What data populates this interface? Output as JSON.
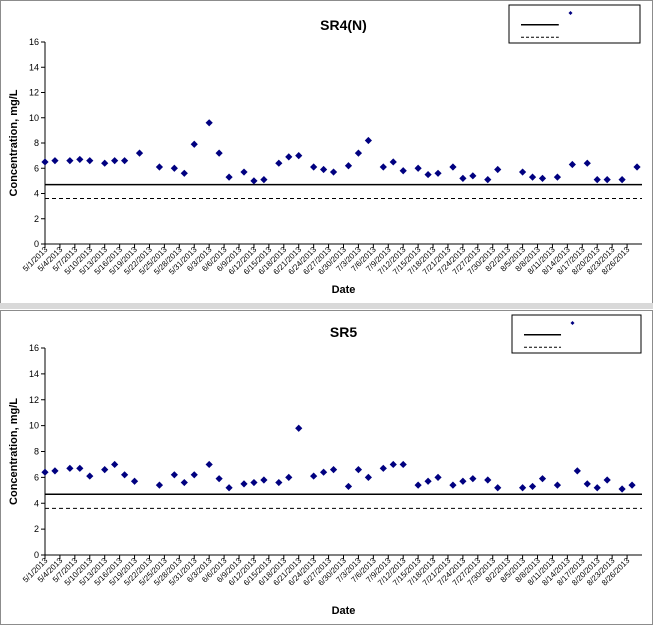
{
  "chart_data": [
    {
      "type": "scatter",
      "title": "SR4(N)",
      "xlabel": "Date",
      "ylabel": "Concentration, mg/L",
      "ylim": [
        0,
        16
      ],
      "yticks": [
        0,
        2,
        4,
        6,
        8,
        10,
        12,
        14,
        16
      ],
      "xtick_labels": [
        "5/1/2013",
        "5/4/2013",
        "5/7/2013",
        "5/10/2013",
        "5/13/2013",
        "5/16/2013",
        "5/19/2013",
        "5/22/2013",
        "5/25/2013",
        "5/28/2013",
        "5/31/2013",
        "6/3/2013",
        "6/6/2013",
        "6/9/2013",
        "6/12/2013",
        "6/15/2013",
        "6/18/2013",
        "6/21/2013",
        "6/24/2013",
        "6/27/2013",
        "6/30/2013",
        "7/3/2013",
        "7/6/2013",
        "7/9/2013",
        "7/12/2013",
        "7/15/2013",
        "7/18/2013",
        "7/21/2013",
        "7/24/2013",
        "7/27/2013",
        "7/30/2013",
        "8/2/2013",
        "8/5/2013",
        "8/8/2013",
        "8/11/2013",
        "8/14/2013",
        "8/17/2013",
        "8/20/2013",
        "8/23/2013",
        "8/26/2013"
      ],
      "series": [
        {
          "name": "SR4(N)",
          "color": "#000080",
          "x": [
            "5/1/2013",
            "5/3/2013",
            "5/6/2013",
            "5/8/2013",
            "5/10/2013",
            "5/13/2013",
            "5/15/2013",
            "5/17/2013",
            "5/20/2013",
            "5/24/2013",
            "5/27/2013",
            "5/29/2013",
            "5/31/2013",
            "6/3/2013",
            "6/5/2013",
            "6/7/2013",
            "6/10/2013",
            "6/12/2013",
            "6/14/2013",
            "6/17/2013",
            "6/19/2013",
            "6/21/2013",
            "6/24/2013",
            "6/26/2013",
            "6/28/2013",
            "7/1/2013",
            "7/3/2013",
            "7/5/2013",
            "7/8/2013",
            "7/10/2013",
            "7/12/2013",
            "7/15/2013",
            "7/17/2013",
            "7/19/2013",
            "7/22/2013",
            "7/24/2013",
            "7/26/2013",
            "7/29/2013",
            "7/31/2013",
            "8/5/2013",
            "8/7/2013",
            "8/9/2013",
            "8/12/2013",
            "8/15/2013",
            "8/18/2013",
            "8/20/2013",
            "8/22/2013",
            "8/25/2013",
            "8/28/2013"
          ],
          "y": [
            6.5,
            6.6,
            6.6,
            6.7,
            6.6,
            6.4,
            6.6,
            6.6,
            7.2,
            6.1,
            6.0,
            5.6,
            7.9,
            9.6,
            7.2,
            5.3,
            5.7,
            5.0,
            5.1,
            6.4,
            6.9,
            7.0,
            6.1,
            5.9,
            5.7,
            6.2,
            7.2,
            8.2,
            6.1,
            6.5,
            5.8,
            6.0,
            5.5,
            5.6,
            6.1,
            5.2,
            5.4,
            5.1,
            5.9,
            5.7,
            5.3,
            5.2,
            5.3,
            6.3,
            6.4,
            5.1,
            5.1,
            5.1,
            6.1
          ]
        }
      ],
      "reference_lines": [
        {
          "value": 4.7,
          "style": "solid",
          "color": "#000000"
        },
        {
          "value": 3.6,
          "style": "dashed",
          "color": "#000000"
        }
      ],
      "legend_placement": "top-right",
      "grid": false
    },
    {
      "type": "scatter",
      "title": "SR5",
      "xlabel": "Date",
      "ylabel": "Concentration, mg/L",
      "ylim": [
        0,
        16
      ],
      "yticks": [
        0,
        2,
        4,
        6,
        8,
        10,
        12,
        14,
        16
      ],
      "xtick_labels": [
        "5/1/2013",
        "5/4/2013",
        "5/7/2013",
        "5/10/2013",
        "5/13/2013",
        "5/16/2013",
        "5/19/2013",
        "5/22/2013",
        "5/25/2013",
        "5/28/2013",
        "5/31/2013",
        "6/3/2013",
        "6/6/2013",
        "6/9/2013",
        "6/12/2013",
        "6/15/2013",
        "6/18/2013",
        "6/21/2013",
        "6/24/2013",
        "6/27/2013",
        "6/30/2013",
        "7/3/2013",
        "7/6/2013",
        "7/9/2013",
        "7/12/2013",
        "7/15/2013",
        "7/18/2013",
        "7/21/2013",
        "7/24/2013",
        "7/27/2013",
        "7/30/2013",
        "8/2/2013",
        "8/5/2013",
        "8/8/2013",
        "8/11/2013",
        "8/14/2013",
        "8/17/2013",
        "8/20/2013",
        "8/23/2013",
        "8/26/2013"
      ],
      "series": [
        {
          "name": "SR5",
          "color": "#000080",
          "x": [
            "5/1/2013",
            "5/3/2013",
            "5/6/2013",
            "5/8/2013",
            "5/10/2013",
            "5/13/2013",
            "5/15/2013",
            "5/17/2013",
            "5/19/2013",
            "5/24/2013",
            "5/27/2013",
            "5/29/2013",
            "5/31/2013",
            "6/3/2013",
            "6/5/2013",
            "6/7/2013",
            "6/10/2013",
            "6/12/2013",
            "6/14/2013",
            "6/17/2013",
            "6/19/2013",
            "6/21/2013",
            "6/24/2013",
            "6/26/2013",
            "6/28/2013",
            "7/1/2013",
            "7/3/2013",
            "7/5/2013",
            "7/8/2013",
            "7/10/2013",
            "7/12/2013",
            "7/15/2013",
            "7/17/2013",
            "7/19/2013",
            "7/22/2013",
            "7/24/2013",
            "7/26/2013",
            "7/29/2013",
            "7/31/2013",
            "8/5/2013",
            "8/7/2013",
            "8/9/2013",
            "8/12/2013",
            "8/16/2013",
            "8/18/2013",
            "8/20/2013",
            "8/22/2013",
            "8/25/2013",
            "8/27/2013"
          ],
          "y": [
            6.4,
            6.5,
            6.7,
            6.7,
            6.1,
            6.6,
            7.0,
            6.2,
            5.7,
            5.4,
            6.2,
            5.6,
            6.2,
            7.0,
            5.9,
            5.2,
            5.5,
            5.6,
            5.8,
            5.6,
            6.0,
            9.8,
            6.1,
            6.4,
            6.6,
            5.3,
            6.6,
            6.0,
            6.7,
            7.0,
            7.0,
            5.4,
            5.7,
            6.0,
            5.4,
            5.7,
            5.9,
            5.8,
            5.2,
            5.2,
            5.3,
            5.9,
            5.4,
            6.5,
            5.5,
            5.2,
            5.8,
            5.1,
            5.4
          ]
        }
      ],
      "reference_lines": [
        {
          "value": 4.7,
          "style": "solid",
          "color": "#000000"
        },
        {
          "value": 3.6,
          "style": "dashed",
          "color": "#000000"
        }
      ],
      "legend_placement": "top-right",
      "grid": false
    }
  ]
}
